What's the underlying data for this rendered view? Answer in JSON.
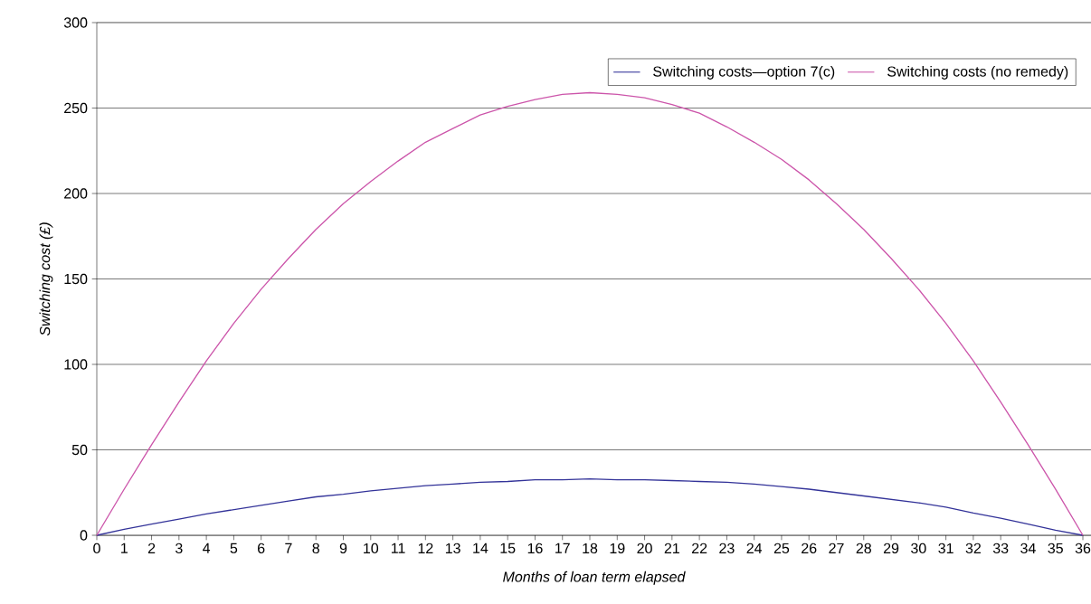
{
  "chart_data": {
    "type": "line",
    "xlabel": "Months of loan term elapsed",
    "ylabel": "Switching cost (£)",
    "categories": [
      "0",
      "1",
      "2",
      "3",
      "4",
      "5",
      "6",
      "7",
      "8",
      "9",
      "10",
      "11",
      "12",
      "13",
      "14",
      "15",
      "16",
      "17",
      "18",
      "19",
      "20",
      "21",
      "22",
      "23",
      "24",
      "25",
      "26",
      "27",
      "28",
      "29",
      "30",
      "31",
      "32",
      "33",
      "34",
      "35",
      "36"
    ],
    "series": [
      {
        "name": "Switching costs—option 7(c)",
        "color": "#333399",
        "values": [
          0,
          3.5,
          6.5,
          9.5,
          12.5,
          15,
          17.5,
          20,
          22.5,
          24,
          26,
          27.5,
          29,
          30,
          31,
          31.5,
          32.5,
          32.5,
          33,
          32.5,
          32.5,
          32,
          31.5,
          31,
          30,
          28.5,
          27,
          25,
          23,
          21,
          19,
          16.5,
          13,
          10,
          6.5,
          3,
          0
        ]
      },
      {
        "name": "Switching costs (no remedy)",
        "color": "#cc55aa",
        "values": [
          0,
          27,
          53,
          78,
          102,
          124,
          144,
          162,
          179,
          194,
          207,
          219,
          230,
          238,
          246,
          251,
          255,
          258,
          259,
          258,
          256,
          252,
          247,
          239,
          230,
          220,
          208,
          194,
          179,
          162,
          144,
          124,
          102,
          78,
          53,
          27,
          0
        ]
      }
    ],
    "ylim": [
      0,
      300
    ],
    "yticks": [
      0,
      50,
      100,
      150,
      200,
      250,
      300
    ],
    "grid": "y",
    "legend": "top right",
    "marker": "none",
    "line_style": "solid"
  }
}
